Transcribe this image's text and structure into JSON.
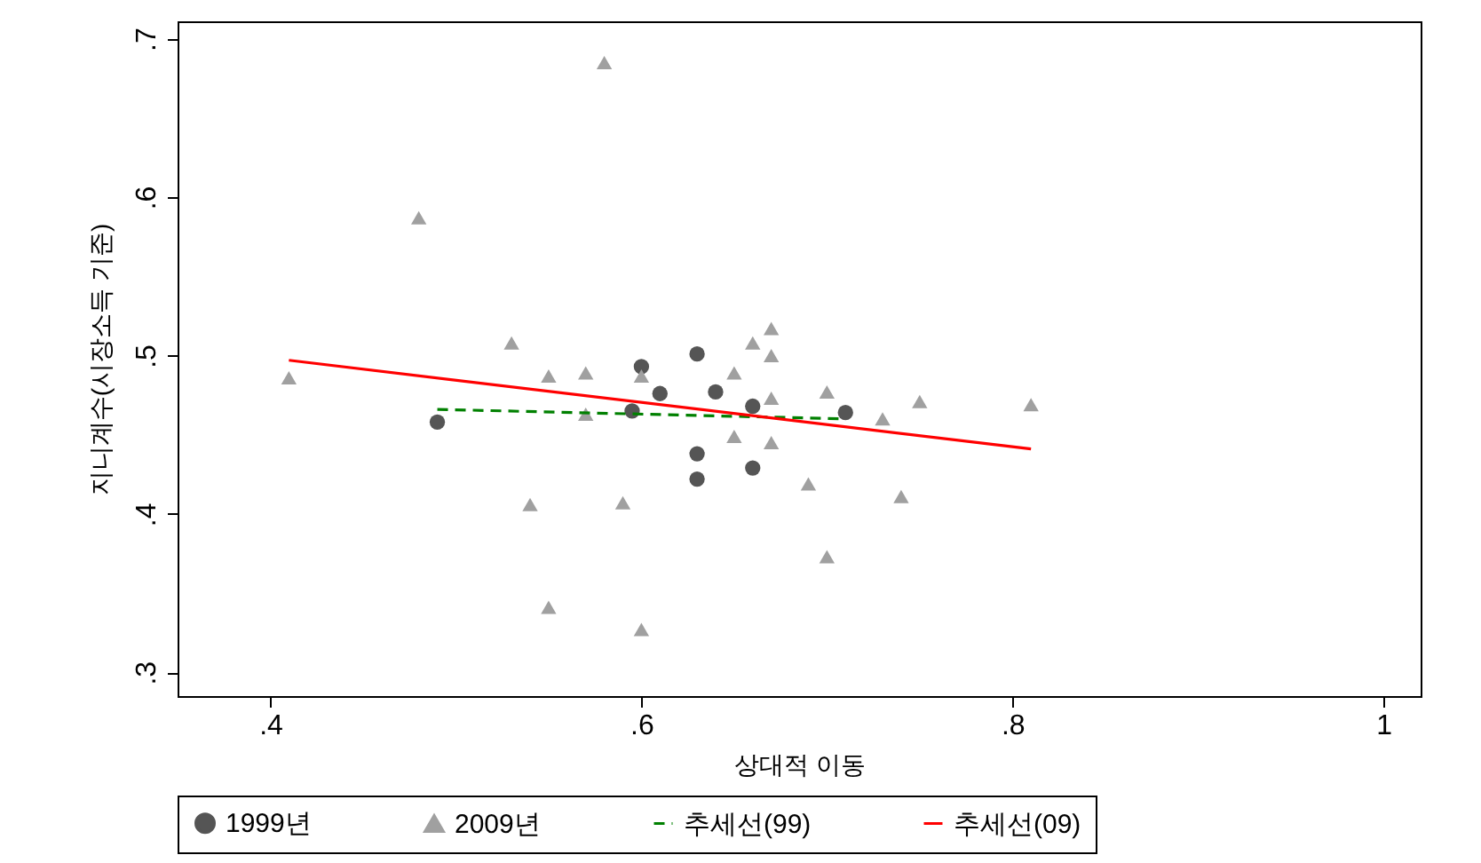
{
  "chart_data": {
    "type": "scatter",
    "xlabel": "상대적 이동",
    "ylabel": "지니계수(시장소득 기준)",
    "xlim": [
      0.35,
      1.02
    ],
    "ylim": [
      0.285,
      0.711
    ],
    "xticks": [
      {
        "value": 0.4,
        "label": ".4"
      },
      {
        "value": 0.6,
        "label": ".6"
      },
      {
        "value": 0.8,
        "label": ".8"
      },
      1
    ],
    "yticks": [
      {
        "value": 0.3,
        "label": ".3"
      },
      {
        "value": 0.4,
        "label": ".4"
      },
      {
        "value": 0.5,
        "label": ".5"
      },
      {
        "value": 0.6,
        "label": ".6"
      },
      {
        "value": 0.7,
        "label": ".7"
      }
    ],
    "grid": false,
    "legend": "bottom",
    "series": [
      {
        "name": "1999년",
        "type": "scatter",
        "marker": "circle",
        "color": "#555555",
        "x": [
          0.49,
          0.595,
          0.6,
          0.61,
          0.63,
          0.64,
          0.66,
          0.63,
          0.63,
          0.66,
          0.71
        ],
        "values": [
          0.458,
          0.465,
          0.493,
          0.476,
          0.501,
          0.477,
          0.468,
          0.438,
          0.422,
          0.429,
          0.464
        ]
      },
      {
        "name": "2009년",
        "type": "scatter",
        "marker": "triangle",
        "color": "#a0a0a0",
        "x": [
          0.41,
          0.48,
          0.58,
          0.53,
          0.55,
          0.57,
          0.57,
          0.6,
          0.65,
          0.66,
          0.67,
          0.67,
          0.67,
          0.65,
          0.67,
          0.7,
          0.75,
          0.81,
          0.73,
          0.69,
          0.74,
          0.7,
          0.54,
          0.59,
          0.55,
          0.6
        ],
        "values": [
          0.486,
          0.587,
          0.685,
          0.508,
          0.487,
          0.489,
          0.463,
          0.487,
          0.489,
          0.508,
          0.517,
          0.5,
          0.473,
          0.449,
          0.445,
          0.477,
          0.471,
          0.469,
          0.46,
          0.419,
          0.411,
          0.373,
          0.406,
          0.407,
          0.341,
          0.327
        ]
      },
      {
        "name": "추세선(99)",
        "type": "line",
        "line_style": "dashed",
        "color": "#008000",
        "x": [
          0.49,
          0.71
        ],
        "values": [
          0.466,
          0.46
        ]
      },
      {
        "name": "추세선(09)",
        "type": "line",
        "line_style": "solid",
        "color": "#ff0000",
        "x": [
          0.41,
          0.81
        ],
        "values": [
          0.497,
          0.441
        ]
      }
    ]
  }
}
